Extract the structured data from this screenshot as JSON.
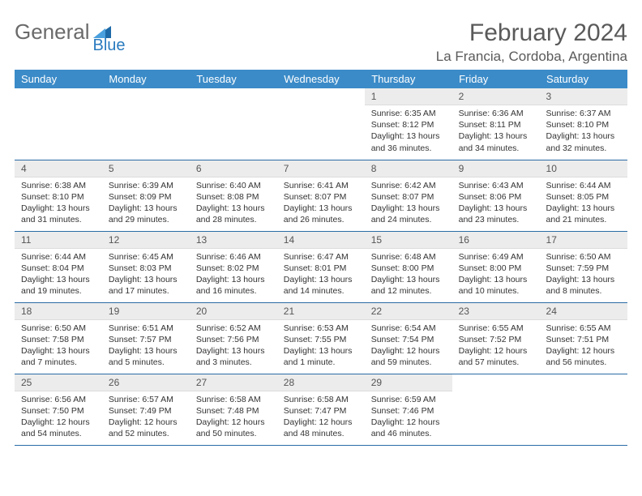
{
  "logo": {
    "general": "General",
    "blue": "Blue"
  },
  "title": "February 2024",
  "location": "La Francia, Cordoba, Argentina",
  "colors": {
    "header_bg": "#3b8bc8",
    "daynum_bg": "#ececec",
    "row_divider": "#2a6ca5",
    "logo_gray": "#6a6a6a",
    "logo_blue": "#2a7bbf"
  },
  "weekdays": [
    "Sunday",
    "Monday",
    "Tuesday",
    "Wednesday",
    "Thursday",
    "Friday",
    "Saturday"
  ],
  "first_day_index": 4,
  "days": [
    {
      "n": 1,
      "sunrise": "6:35 AM",
      "sunset": "8:12 PM",
      "daylight": "13 hours and 36 minutes."
    },
    {
      "n": 2,
      "sunrise": "6:36 AM",
      "sunset": "8:11 PM",
      "daylight": "13 hours and 34 minutes."
    },
    {
      "n": 3,
      "sunrise": "6:37 AM",
      "sunset": "8:10 PM",
      "daylight": "13 hours and 32 minutes."
    },
    {
      "n": 4,
      "sunrise": "6:38 AM",
      "sunset": "8:10 PM",
      "daylight": "13 hours and 31 minutes."
    },
    {
      "n": 5,
      "sunrise": "6:39 AM",
      "sunset": "8:09 PM",
      "daylight": "13 hours and 29 minutes."
    },
    {
      "n": 6,
      "sunrise": "6:40 AM",
      "sunset": "8:08 PM",
      "daylight": "13 hours and 28 minutes."
    },
    {
      "n": 7,
      "sunrise": "6:41 AM",
      "sunset": "8:07 PM",
      "daylight": "13 hours and 26 minutes."
    },
    {
      "n": 8,
      "sunrise": "6:42 AM",
      "sunset": "8:07 PM",
      "daylight": "13 hours and 24 minutes."
    },
    {
      "n": 9,
      "sunrise": "6:43 AM",
      "sunset": "8:06 PM",
      "daylight": "13 hours and 23 minutes."
    },
    {
      "n": 10,
      "sunrise": "6:44 AM",
      "sunset": "8:05 PM",
      "daylight": "13 hours and 21 minutes."
    },
    {
      "n": 11,
      "sunrise": "6:44 AM",
      "sunset": "8:04 PM",
      "daylight": "13 hours and 19 minutes."
    },
    {
      "n": 12,
      "sunrise": "6:45 AM",
      "sunset": "8:03 PM",
      "daylight": "13 hours and 17 minutes."
    },
    {
      "n": 13,
      "sunrise": "6:46 AM",
      "sunset": "8:02 PM",
      "daylight": "13 hours and 16 minutes."
    },
    {
      "n": 14,
      "sunrise": "6:47 AM",
      "sunset": "8:01 PM",
      "daylight": "13 hours and 14 minutes."
    },
    {
      "n": 15,
      "sunrise": "6:48 AM",
      "sunset": "8:00 PM",
      "daylight": "13 hours and 12 minutes."
    },
    {
      "n": 16,
      "sunrise": "6:49 AM",
      "sunset": "8:00 PM",
      "daylight": "13 hours and 10 minutes."
    },
    {
      "n": 17,
      "sunrise": "6:50 AM",
      "sunset": "7:59 PM",
      "daylight": "13 hours and 8 minutes."
    },
    {
      "n": 18,
      "sunrise": "6:50 AM",
      "sunset": "7:58 PM",
      "daylight": "13 hours and 7 minutes."
    },
    {
      "n": 19,
      "sunrise": "6:51 AM",
      "sunset": "7:57 PM",
      "daylight": "13 hours and 5 minutes."
    },
    {
      "n": 20,
      "sunrise": "6:52 AM",
      "sunset": "7:56 PM",
      "daylight": "13 hours and 3 minutes."
    },
    {
      "n": 21,
      "sunrise": "6:53 AM",
      "sunset": "7:55 PM",
      "daylight": "13 hours and 1 minute."
    },
    {
      "n": 22,
      "sunrise": "6:54 AM",
      "sunset": "7:54 PM",
      "daylight": "12 hours and 59 minutes."
    },
    {
      "n": 23,
      "sunrise": "6:55 AM",
      "sunset": "7:52 PM",
      "daylight": "12 hours and 57 minutes."
    },
    {
      "n": 24,
      "sunrise": "6:55 AM",
      "sunset": "7:51 PM",
      "daylight": "12 hours and 56 minutes."
    },
    {
      "n": 25,
      "sunrise": "6:56 AM",
      "sunset": "7:50 PM",
      "daylight": "12 hours and 54 minutes."
    },
    {
      "n": 26,
      "sunrise": "6:57 AM",
      "sunset": "7:49 PM",
      "daylight": "12 hours and 52 minutes."
    },
    {
      "n": 27,
      "sunrise": "6:58 AM",
      "sunset": "7:48 PM",
      "daylight": "12 hours and 50 minutes."
    },
    {
      "n": 28,
      "sunrise": "6:58 AM",
      "sunset": "7:47 PM",
      "daylight": "12 hours and 48 minutes."
    },
    {
      "n": 29,
      "sunrise": "6:59 AM",
      "sunset": "7:46 PM",
      "daylight": "12 hours and 46 minutes."
    }
  ],
  "labels": {
    "sunrise": "Sunrise:",
    "sunset": "Sunset:",
    "daylight": "Daylight:"
  }
}
